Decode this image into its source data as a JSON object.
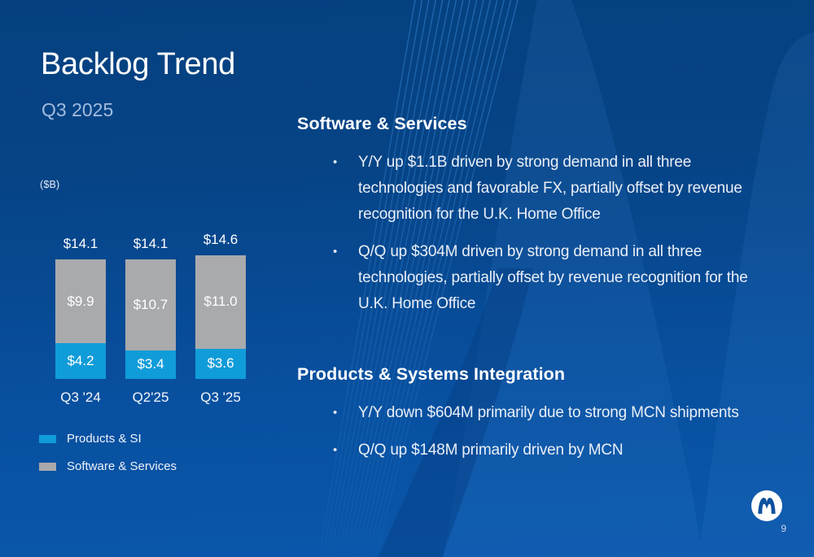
{
  "slide": {
    "title": "Backlog Trend",
    "subtitle": "Q3 2025",
    "page_number": "9"
  },
  "chart_data": {
    "type": "bar",
    "stacked": true,
    "title": "Backlog Trend",
    "unit_label": "($B)",
    "categories": [
      "Q3 '24",
      "Q2'25",
      "Q3 '25"
    ],
    "series": [
      {
        "name": "Products & SI",
        "color": "#109CD9",
        "values": [
          4.2,
          3.4,
          3.6
        ],
        "data_labels": [
          "$4.2",
          "$3.4",
          "$3.6"
        ]
      },
      {
        "name": "Software & Services",
        "color": "#A9AAAC",
        "values": [
          9.9,
          10.7,
          11.0
        ],
        "data_labels": [
          "$9.9",
          "$10.7",
          "$11.0"
        ]
      }
    ],
    "totals": [
      14.1,
      14.1,
      14.6
    ],
    "total_labels": [
      "$14.1",
      "$14.1",
      "$14.6"
    ],
    "ylim": [
      0,
      16
    ],
    "grid": false,
    "legend_position": "bottom-left"
  },
  "legend": {
    "items": [
      {
        "label": "Products & SI",
        "color": "#109CD9"
      },
      {
        "label": "Software & Services",
        "color": "#A9AAAC"
      }
    ]
  },
  "commentary": {
    "sections": [
      {
        "heading": "Software & Services",
        "bullets": [
          "Y/Y up $1.1B driven by strong demand in all three technologies and favorable FX, partially offset by revenue recognition for the U.K. Home Office",
          "Q/Q up $304M driven by strong demand in all three technologies, partially offset by revenue recognition for the U.K. Home Office"
        ]
      },
      {
        "heading": "Products & Systems Integration",
        "bullets": [
          "Y/Y down $604M primarily due to strong MCN shipments",
          "Q/Q up $148M primarily driven by MCN"
        ]
      }
    ]
  },
  "colors": {
    "background_top": "#05417F",
    "background_bottom": "#0A57AB",
    "accent_blue": "#109CD9",
    "neutral_gray": "#A9AAAC",
    "subtitle_text": "#A3BCDF",
    "watermark_blue": "#3E8AD4",
    "logo_blue": "#0E509D"
  },
  "icons": {
    "logo": "motorola-batwing-m"
  }
}
